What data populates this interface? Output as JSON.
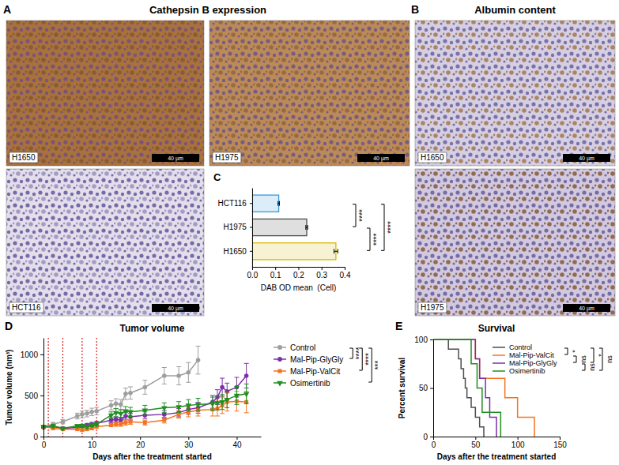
{
  "chart_data": [
    {
      "type": "image",
      "panel": "A",
      "title": "Cathepsin B expression",
      "images": [
        {
          "label": "H1650",
          "scale_bar": "40 µm"
        },
        {
          "label": "H1975",
          "scale_bar": "40 µm"
        },
        {
          "label": "HCT116",
          "scale_bar": "40 µm"
        }
      ]
    },
    {
      "type": "image",
      "panel": "B",
      "title": "Albumin content",
      "images": [
        {
          "label": "H1650",
          "scale_bar": "40 µm"
        },
        {
          "label": "H1975",
          "scale_bar": "40 µm"
        }
      ]
    },
    {
      "type": "bar",
      "panel": "C",
      "orientation": "horizontal",
      "categories": [
        "HCT116",
        "H1975",
        "H1650"
      ],
      "values": [
        0.115,
        0.236,
        0.362
      ],
      "errors": [
        0.003,
        0.004,
        0.008
      ],
      "colors": [
        "#3a9ad9",
        "#4d4d4d",
        "#d4b800"
      ],
      "xlim": [
        0,
        0.4
      ],
      "xticks": [
        {
          "value": 0,
          "label": "0.0"
        },
        {
          "value": 0.1,
          "label": "0.1"
        },
        {
          "value": 0.2,
          "label": "0.2"
        },
        {
          "value": 0.3,
          "label": "0.3"
        },
        {
          "value": 0.4,
          "label": "0.4"
        }
      ],
      "x_label": "DAB OD mean  (Cell)",
      "significance": [
        {
          "groups": [
            "HCT116",
            "H1975"
          ],
          "label": "****"
        },
        {
          "groups": [
            "H1975",
            "H1650"
          ],
          "label": "****"
        },
        {
          "groups": [
            "HCT116",
            "H1650"
          ],
          "label": "****"
        }
      ]
    },
    {
      "type": "line",
      "panel": "D",
      "title": "Tumor volume",
      "x": [
        0,
        2,
        4,
        7,
        8,
        9,
        10,
        11,
        14,
        15,
        16,
        17,
        18,
        21,
        25,
        28,
        30,
        32,
        35,
        36,
        37,
        38,
        40,
        42
      ],
      "series": [
        {
          "name": "Control",
          "color": "#9e9e9e",
          "marker": "circle",
          "values": [
            120,
            150,
            180,
            250,
            270,
            280,
            300,
            310,
            380,
            400,
            390,
            520,
            530,
            600,
            740,
            740,
            780,
            930,
            null,
            null,
            null,
            null,
            null,
            null
          ],
          "errors": [
            15,
            20,
            25,
            35,
            40,
            40,
            45,
            45,
            55,
            60,
            60,
            70,
            75,
            85,
            100,
            110,
            120,
            170,
            null,
            null,
            null,
            null,
            null,
            null
          ]
        },
        {
          "name": "Mal-Pip-GlyGly",
          "color": "#7b2fa8",
          "marker": "circle",
          "values": [
            110,
            120,
            100,
            110,
            130,
            140,
            150,
            160,
            200,
            210,
            200,
            250,
            240,
            260,
            270,
            290,
            330,
            350,
            420,
            480,
            600,
            550,
            600,
            740
          ],
          "errors": [
            10,
            12,
            12,
            15,
            20,
            20,
            22,
            25,
            30,
            30,
            30,
            40,
            40,
            40,
            45,
            50,
            60,
            65,
            80,
            90,
            110,
            100,
            120,
            150
          ]
        },
        {
          "name": "Mal-Pip-ValCit",
          "color": "#f5731f",
          "marker": "square",
          "values": [
            120,
            100,
            90,
            90,
            80,
            90,
            100,
            120,
            140,
            150,
            150,
            170,
            180,
            170,
            200,
            270,
            300,
            320,
            330,
            340,
            380,
            420,
            430,
            420
          ],
          "errors": [
            10,
            10,
            10,
            12,
            12,
            12,
            15,
            18,
            20,
            25,
            25,
            30,
            30,
            30,
            35,
            45,
            60,
            70,
            80,
            90,
            100,
            110,
            120,
            130
          ]
        },
        {
          "name": "Osimertinib",
          "color": "#1f8f1f",
          "marker": "triangle-down",
          "values": [
            120,
            130,
            100,
            130,
            130,
            120,
            140,
            150,
            260,
            290,
            280,
            310,
            300,
            320,
            350,
            360,
            380,
            390,
            400,
            410,
            420,
            450,
            500,
            520
          ],
          "errors": [
            10,
            15,
            12,
            15,
            15,
            15,
            20,
            20,
            40,
            50,
            45,
            55,
            55,
            60,
            60,
            65,
            70,
            75,
            80,
            85,
            90,
            100,
            110,
            120
          ]
        }
      ],
      "xlim": [
        0,
        45
      ],
      "ylim": [
        0,
        1200
      ],
      "xticks": [
        0,
        10,
        20,
        30,
        40
      ],
      "yticks": [
        0,
        500,
        1000
      ],
      "x_label": "Days after the treatment started",
      "y_label": "Tumor volume (nm³)",
      "legend": "right",
      "vlines": [
        1,
        4,
        8,
        11
      ],
      "significance": [
        {
          "groups": [
            "Control",
            "Mal-Pip-GlyGly"
          ],
          "label": "****"
        },
        {
          "groups": [
            "Control",
            "Mal-Pip-ValCit"
          ],
          "label": "****"
        },
        {
          "groups": [
            "Control",
            "Osimertinib"
          ],
          "label": "***"
        }
      ]
    },
    {
      "type": "line",
      "panel": "E",
      "title": "Survival",
      "line_style": "step",
      "series": [
        {
          "name": "Control",
          "color": "#4d4d4d",
          "x": [
            0,
            18,
            30,
            33,
            36,
            38,
            40,
            45,
            50,
            55,
            60
          ],
          "values": [
            100,
            90,
            80,
            70,
            60,
            50,
            40,
            30,
            20,
            10,
            0
          ]
        },
        {
          "name": "Mal-Pip-ValCit",
          "color": "#f5731f",
          "x": [
            0,
            50,
            55,
            85,
            100,
            120
          ],
          "values": [
            100,
            80,
            60,
            40,
            20,
            0
          ]
        },
        {
          "name": "Mal-Pip-GlyGly",
          "color": "#7b2fa8",
          "x": [
            0,
            50,
            55,
            62,
            67,
            75
          ],
          "values": [
            100,
            80,
            60,
            40,
            20,
            0
          ]
        },
        {
          "name": "Osimertinib",
          "color": "#1f8f1f",
          "x": [
            0,
            45,
            52,
            58,
            80
          ],
          "values": [
            100,
            75,
            50,
            25,
            0
          ]
        }
      ],
      "xlim": [
        0,
        150
      ],
      "ylim": [
        0,
        100
      ],
      "xticks": [
        0,
        50,
        100,
        150
      ],
      "yticks": [
        0,
        50,
        100
      ],
      "x_label": "Days after the treatment started",
      "y_label": "Percent survival",
      "legend": "top-right",
      "significance": [
        {
          "groups": [
            "Control",
            "Mal-Pip-ValCit"
          ],
          "label": "*"
        },
        {
          "groups": [
            "Mal-Pip-ValCit",
            "Mal-Pip-GlyGly"
          ],
          "label": "ns"
        },
        {
          "groups": [
            "Mal-Pip-GlyGly",
            "Osimertinib"
          ],
          "label": "ns"
        },
        {
          "groups": [
            "Control",
            "Mal-Pip-GlyGly"
          ],
          "label": "*"
        },
        {
          "groups": [
            "Control",
            "Osimertinib"
          ],
          "label": "ns"
        }
      ]
    }
  ]
}
